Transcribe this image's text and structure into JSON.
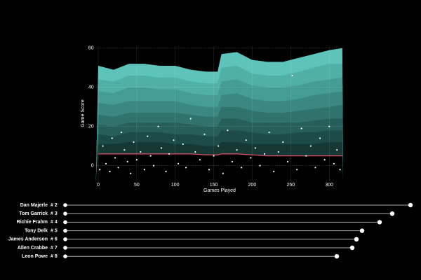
{
  "chart_data": [
    {
      "type": "area",
      "y_label": "Game Score",
      "x_label": "Games Played",
      "xlim": [
        -3,
        318
      ],
      "ylim": [
        -8,
        61
      ],
      "xticks": [
        0,
        50,
        100,
        150,
        200,
        250,
        300
      ],
      "yticks": [
        0,
        20,
        40,
        60
      ],
      "x": [
        0,
        20,
        40,
        60,
        80,
        100,
        120,
        140,
        155,
        160,
        180,
        200,
        220,
        240,
        260,
        280,
        300,
        317
      ],
      "series": [
        {
          "color": "#5cc4ba",
          "values": [
            51,
            49,
            52,
            52,
            51,
            51,
            49,
            48,
            48,
            57,
            58,
            54,
            53,
            53,
            55,
            57,
            59,
            60
          ]
        },
        {
          "color": "#50b0a7",
          "values": [
            44,
            43,
            46,
            46,
            45,
            45,
            43,
            42,
            42,
            50,
            51,
            47,
            46,
            46,
            48,
            50,
            52,
            52
          ]
        },
        {
          "color": "#459c94",
          "values": [
            38,
            37,
            40,
            40,
            39,
            39,
            37,
            36,
            36,
            43,
            44,
            41,
            40,
            40,
            41,
            43,
            44,
            45
          ]
        },
        {
          "color": "#3a8881",
          "values": [
            32,
            31,
            33,
            33,
            33,
            33,
            31,
            30,
            30,
            36,
            37,
            34,
            33,
            33,
            34,
            36,
            37,
            38
          ]
        },
        {
          "color": "#30736d",
          "values": [
            26,
            25,
            27,
            27,
            27,
            27,
            26,
            25,
            25,
            30,
            30,
            28,
            27,
            27,
            28,
            29,
            30,
            31
          ]
        },
        {
          "color": "#265f5a",
          "values": [
            21,
            20,
            22,
            22,
            22,
            22,
            21,
            20,
            20,
            24,
            24,
            22,
            22,
            22,
            22,
            23,
            24,
            24
          ]
        },
        {
          "color": "#1d4b47",
          "values": [
            16,
            15,
            17,
            17,
            17,
            16,
            16,
            15,
            15,
            18,
            18,
            17,
            16,
            16,
            17,
            17,
            18,
            18
          ]
        },
        {
          "color": "#153835",
          "values": [
            11,
            11,
            12,
            12,
            12,
            11,
            11,
            10,
            10,
            12,
            12,
            11,
            11,
            11,
            11,
            11,
            12,
            12
          ]
        }
      ],
      "line": {
        "color": "#e0506a",
        "values": [
          6,
          6,
          6,
          6,
          6,
          6,
          6,
          5.5,
          5.5,
          6,
          6,
          5.5,
          5,
          5,
          5,
          5,
          5,
          5
        ]
      },
      "points": {
        "color": "#ffffff",
        "x": [
          2,
          6,
          10,
          15,
          18,
          22,
          26,
          30,
          34,
          38,
          42,
          46,
          50,
          55,
          60,
          64,
          68,
          72,
          78,
          82,
          88,
          92,
          98,
          104,
          110,
          114,
          120,
          126,
          132,
          138,
          144,
          150,
          156,
          162,
          168,
          174,
          180,
          186,
          192,
          198,
          204,
          210,
          216,
          222,
          228,
          234,
          240,
          246,
          252,
          258,
          264,
          270,
          276,
          282,
          288,
          294,
          300,
          306,
          310,
          314
        ],
        "y": [
          -2,
          10,
          1,
          -3,
          14,
          4,
          -1,
          17,
          8,
          2,
          -4,
          12,
          3,
          7,
          -2,
          15,
          5,
          0,
          20,
          9,
          -3,
          6,
          13,
          1,
          11,
          -1,
          24,
          7,
          3,
          16,
          -2,
          5,
          10,
          -4,
          18,
          2,
          8,
          -1,
          13,
          4,
          9,
          0,
          6,
          17,
          -3,
          7,
          12,
          2,
          46,
          -2,
          19,
          5,
          10,
          -1,
          14,
          3,
          20,
          1,
          8,
          -2
        ]
      }
    },
    {
      "type": "lollipop",
      "categories": [
        "Dan Majerle",
        "Tom Garrick",
        "Richie Frahm",
        "Tony Delk",
        "James Anderson",
        "Allen Crabbe",
        "Leon Powe"
      ],
      "labels": [
        "# 2",
        "# 3",
        "# 4",
        "# 5",
        "# 6",
        "# 7",
        "# 8"
      ],
      "values": [
        492,
        466,
        448,
        423,
        415,
        409,
        387
      ],
      "xlim": [
        0,
        500
      ]
    }
  ]
}
